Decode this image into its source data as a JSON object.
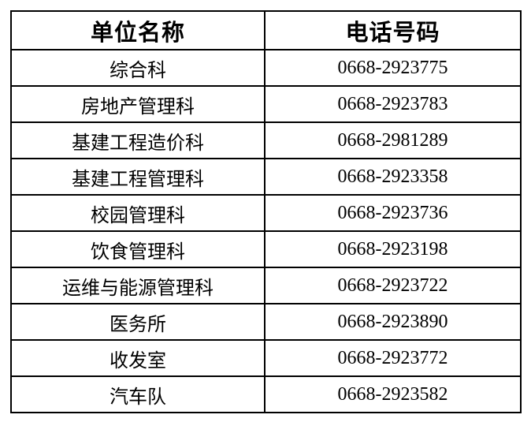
{
  "colors": {
    "background": "#ffffff",
    "border": "#000000",
    "text": "#000000"
  },
  "table": {
    "headers": [
      {
        "label": "单位名称"
      },
      {
        "label": "电话号码"
      }
    ],
    "rows": [
      {
        "unit": "综合科",
        "phone": "0668-2923775"
      },
      {
        "unit": "房地产管理科",
        "phone": "0668-2923783"
      },
      {
        "unit": "基建工程造价科",
        "phone": "0668-2981289"
      },
      {
        "unit": "基建工程管理科",
        "phone": "0668-2923358"
      },
      {
        "unit": "校园管理科",
        "phone": "0668-2923736"
      },
      {
        "unit": "饮食管理科",
        "phone": "0668-2923198"
      },
      {
        "unit": "运维与能源管理科",
        "phone": "0668-2923722"
      },
      {
        "unit": "医务所",
        "phone": "0668-2923890"
      },
      {
        "unit": "收发室",
        "phone": "0668-2923772"
      },
      {
        "unit": "汽车队",
        "phone": "0668-2923582"
      }
    ]
  }
}
